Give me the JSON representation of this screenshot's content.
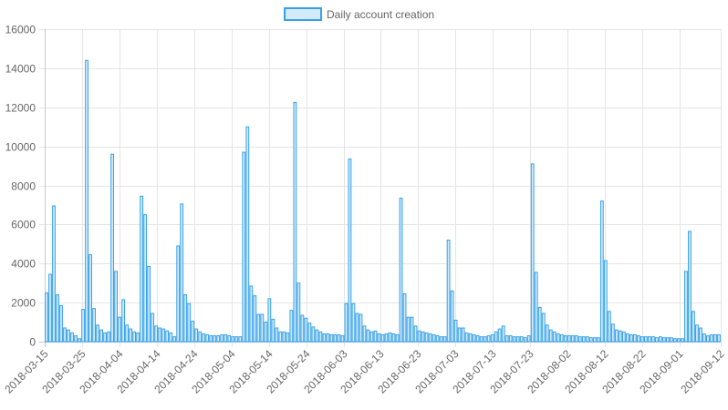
{
  "chart_data": {
    "type": "bar",
    "legend": {
      "label": "Daily account creation",
      "position": "top"
    },
    "colors": {
      "bar_fill": "#d4eaf8",
      "bar_stroke": "#36a2eb",
      "grid": "#e5e5e5",
      "text": "#666666"
    },
    "y_ticks": [
      "0",
      "2000",
      "4000",
      "6000",
      "8000",
      "10000",
      "12000",
      "14000",
      "16000"
    ],
    "ylim": [
      0,
      16000
    ],
    "x_ticks": [
      "2018-03-15",
      "2018-03-25",
      "2018-04-04",
      "2018-04-14",
      "2018-04-24",
      "2018-05-04",
      "2018-05-14",
      "2018-05-24",
      "2018-06-03",
      "2018-06-13",
      "2018-06-23",
      "2018-07-03",
      "2018-07-13",
      "2018-07-23",
      "2018-08-02",
      "2018-08-12",
      "2018-08-22",
      "2018-09-01",
      "2018-09-12"
    ],
    "x_start": "2018-03-15",
    "x_end": "2018-09-12",
    "grid": true,
    "values": [
      2500,
      3450,
      6950,
      2400,
      1850,
      700,
      600,
      450,
      300,
      150,
      1650,
      14400,
      4450,
      1700,
      850,
      600,
      450,
      500,
      9600,
      3600,
      1250,
      2150,
      850,
      650,
      500,
      450,
      7450,
      6500,
      3850,
      1450,
      800,
      700,
      650,
      550,
      450,
      250,
      4900,
      7050,
      2400,
      1950,
      1050,
      650,
      500,
      400,
      350,
      300,
      300,
      300,
      350,
      350,
      300,
      250,
      250,
      250,
      9700,
      11000,
      2850,
      2350,
      1400,
      1400,
      1000,
      2200,
      1150,
      700,
      500,
      500,
      450,
      1600,
      12250,
      3000,
      1350,
      1200,
      950,
      750,
      600,
      500,
      400,
      400,
      350,
      350,
      350,
      300,
      1950,
      9350,
      1950,
      1450,
      1400,
      800,
      600,
      500,
      550,
      400,
      350,
      400,
      450,
      400,
      350,
      7350,
      2450,
      1250,
      1250,
      800,
      550,
      500,
      450,
      400,
      350,
      300,
      250,
      250,
      5200,
      2600,
      1100,
      700,
      700,
      450,
      400,
      350,
      300,
      250,
      250,
      300,
      350,
      500,
      650,
      800,
      300,
      300,
      250,
      250,
      250,
      200,
      300,
      9100,
      3550,
      1750,
      1450,
      850,
      600,
      500,
      400,
      350,
      300,
      300,
      300,
      300,
      250,
      250,
      250,
      200,
      200,
      200,
      7200,
      4150,
      1550,
      900,
      600,
      550,
      500,
      400,
      350,
      350,
      300,
      250,
      250,
      250,
      250,
      200,
      250,
      200,
      200,
      200,
      150,
      150,
      150,
      3600,
      5650,
      1550,
      850,
      700,
      400,
      300,
      350,
      350,
      350
    ]
  }
}
